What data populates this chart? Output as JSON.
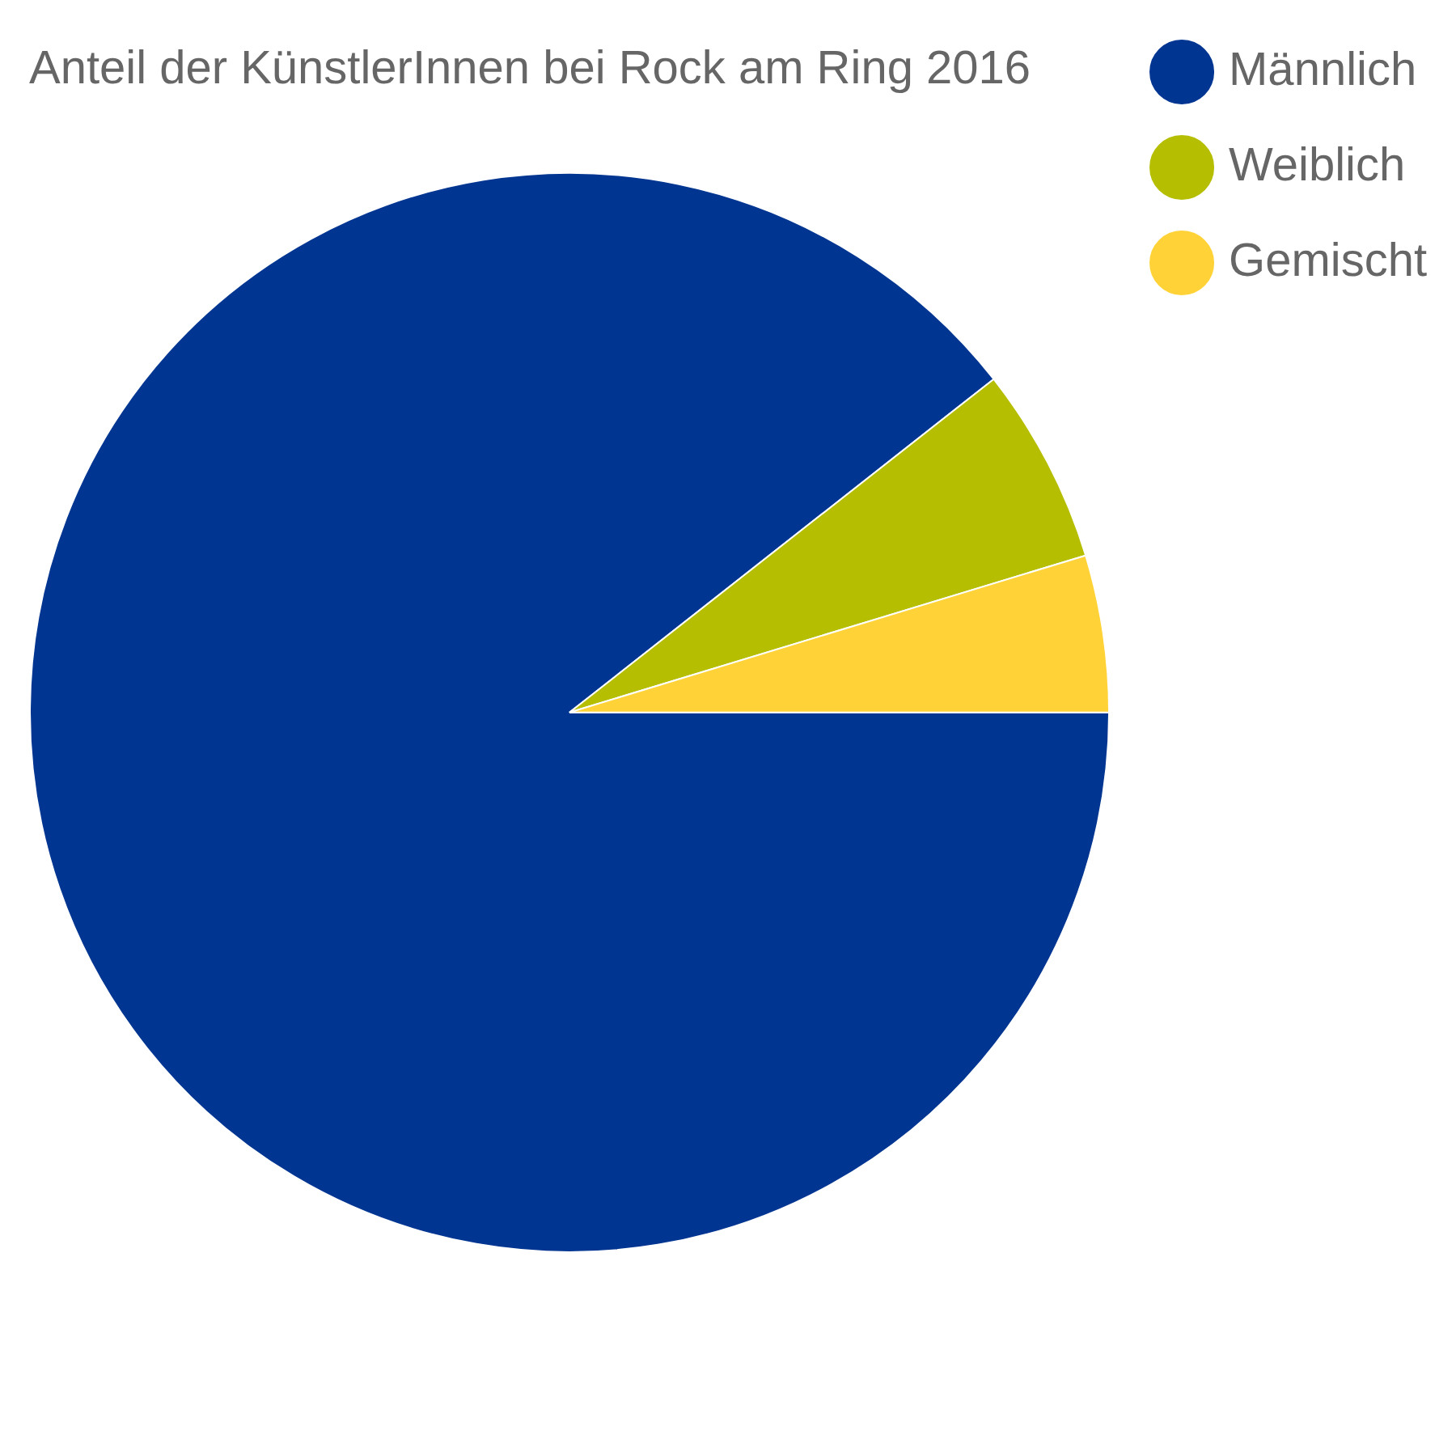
{
  "chart_data": {
    "type": "pie",
    "title": "Anteil der KünstlerInnen bei Rock am Ring 2016",
    "categories": [
      "Männlich",
      "Weiblich",
      "Gemischt"
    ],
    "values": [
      89.4,
      5.9,
      4.7
    ],
    "colors": [
      "#003591",
      "#b5be00",
      "#ffd337"
    ],
    "legend": "top right"
  }
}
